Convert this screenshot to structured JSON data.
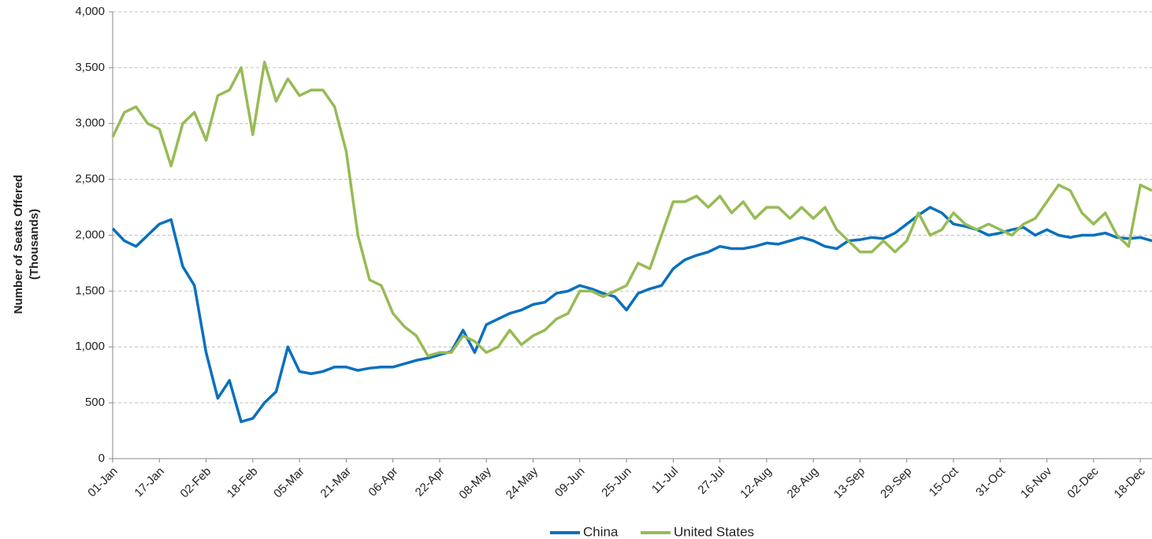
{
  "chart_data": {
    "type": "line",
    "ylabel": [
      "Number of Seats Offered",
      "(Thousands)"
    ],
    "categories": [
      "01-Jan",
      null,
      null,
      null,
      "17-Jan",
      null,
      null,
      null,
      "02-Feb",
      null,
      null,
      null,
      "18-Feb",
      null,
      null,
      null,
      "05-Mar",
      null,
      null,
      null,
      "21-Mar",
      null,
      null,
      null,
      "06-Apr",
      null,
      null,
      null,
      "22-Apr",
      null,
      null,
      null,
      "08-May",
      null,
      null,
      null,
      "24-May",
      null,
      null,
      null,
      "09-Jun",
      null,
      null,
      null,
      "25-Jun",
      null,
      null,
      null,
      "11-Jul",
      null,
      null,
      null,
      "27-Jul",
      null,
      null,
      null,
      "12-Aug",
      null,
      null,
      null,
      "28-Aug",
      null,
      null,
      null,
      "13-Sep",
      null,
      null,
      null,
      "29-Sep",
      null,
      null,
      null,
      "15-Oct",
      null,
      null,
      null,
      "31-Oct",
      null,
      null,
      null,
      "16-Nov",
      null,
      null,
      null,
      "02-Dec",
      null,
      null,
      null,
      "18-Dec",
      null
    ],
    "series": [
      {
        "name": "China",
        "color": "#0a70bd",
        "values": [
          2060,
          1950,
          1900,
          2000,
          2100,
          2140,
          1720,
          1550,
          950,
          540,
          700,
          330,
          360,
          500,
          600,
          1000,
          780,
          760,
          780,
          820,
          820,
          790,
          810,
          820,
          820,
          850,
          880,
          900,
          930,
          960,
          1150,
          950,
          1200,
          1250,
          1300,
          1330,
          1380,
          1400,
          1480,
          1500,
          1550,
          1520,
          1480,
          1450,
          1330,
          1480,
          1520,
          1550,
          1700,
          1780,
          1820,
          1850,
          1900,
          1880,
          1880,
          1900,
          1930,
          1920,
          1950,
          1980,
          1950,
          1900,
          1880,
          1950,
          1960,
          1980,
          1970,
          2020,
          2100,
          2180,
          2250,
          2200,
          2100,
          2080,
          2050,
          2000,
          2020,
          2050,
          2070,
          2000,
          2050,
          2000,
          1980,
          2000,
          2000,
          2020,
          1980,
          1970,
          1980,
          1950
        ]
      },
      {
        "name": "United States",
        "color": "#97bb55",
        "values": [
          2880,
          3100,
          3150,
          3000,
          2950,
          2620,
          3000,
          3100,
          2850,
          3250,
          3300,
          3500,
          2900,
          3550,
          3200,
          3400,
          3250,
          3300,
          3300,
          3150,
          2750,
          2000,
          1600,
          1550,
          1300,
          1180,
          1100,
          920,
          950,
          950,
          1100,
          1050,
          950,
          1000,
          1150,
          1020,
          1100,
          1150,
          1250,
          1300,
          1500,
          1500,
          1450,
          1500,
          1550,
          1750,
          1700,
          2000,
          2300,
          2300,
          2350,
          2250,
          2350,
          2200,
          2300,
          2150,
          2250,
          2250,
          2150,
          2250,
          2150,
          2250,
          2050,
          1950,
          1850,
          1850,
          1950,
          1850,
          1950,
          2200,
          2000,
          2050,
          2200,
          2100,
          2050,
          2100,
          2050,
          2000,
          2100,
          2150,
          2300,
          2450,
          2400,
          2200,
          2100,
          2200,
          2000,
          1900,
          2450,
          2400
        ]
      }
    ],
    "ylim": [
      0,
      4000
    ],
    "yticks": [
      0,
      500,
      {
        "value": 1000,
        "label": "1,000"
      },
      {
        "value": 1500,
        "label": "1,500"
      },
      {
        "value": 2000,
        "label": "2,000"
      },
      {
        "value": 2500,
        "label": "2,500"
      },
      {
        "value": 3000,
        "label": "3,000"
      },
      {
        "value": 3500,
        "label": "3,500"
      },
      {
        "value": 4000,
        "label": "4,000"
      }
    ],
    "grid": true,
    "legend": "bottom"
  }
}
